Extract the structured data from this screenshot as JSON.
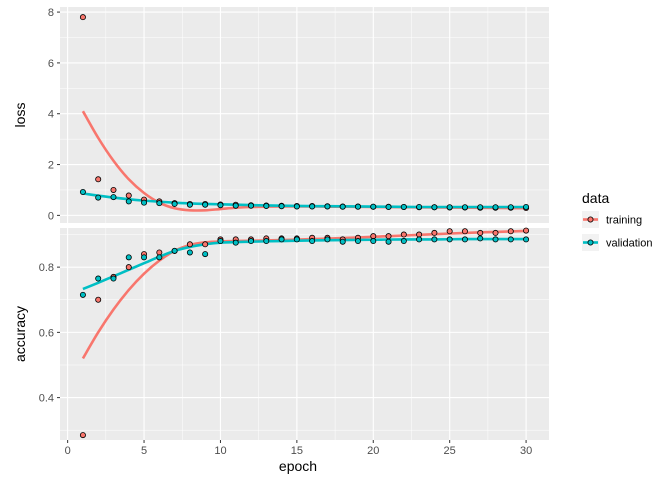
{
  "chart_data": {
    "type": "scatter",
    "xlabel": "epoch",
    "x_ticks": [
      0,
      5,
      10,
      15,
      20,
      25,
      30
    ],
    "legend": {
      "title": "data",
      "position": "right",
      "entries": [
        "training",
        "validation"
      ]
    },
    "colors": {
      "training": "#F8766D",
      "validation": "#00BFC4",
      "panel_bg": "#EBEBEB",
      "grid": "#FFFFFF"
    },
    "grid": true,
    "smooth_lines": true,
    "panels": [
      {
        "name": "loss",
        "ylabel": "loss",
        "ylim": [
          -0.3,
          8.2
        ],
        "y_ticks": [
          0,
          2,
          4,
          6,
          8
        ],
        "series": [
          {
            "name": "training",
            "x": [
              1,
              2,
              3,
              4,
              5,
              6,
              7,
              8,
              9,
              10,
              11,
              12,
              13,
              14,
              15,
              16,
              17,
              18,
              19,
              20,
              21,
              22,
              23,
              24,
              25,
              26,
              27,
              28,
              29,
              30
            ],
            "values": [
              7.8,
              1.42,
              1.0,
              0.78,
              0.62,
              0.55,
              0.48,
              0.45,
              0.45,
              0.43,
              0.42,
              0.4,
              0.39,
              0.38,
              0.37,
              0.37,
              0.36,
              0.35,
              0.35,
              0.34,
              0.34,
              0.33,
              0.32,
              0.32,
              0.31,
              0.31,
              0.3,
              0.3,
              0.3,
              0.29
            ],
            "smooth": [
              [
                1,
                4.1
              ],
              [
                2,
                3.05
              ],
              [
                3,
                2.15
              ],
              [
                4,
                1.42
              ],
              [
                5,
                0.88
              ],
              [
                6,
                0.5
              ],
              [
                7,
                0.28
              ],
              [
                8,
                0.2
              ],
              [
                9,
                0.2
              ],
              [
                10,
                0.25
              ],
              [
                11,
                0.3
              ],
              [
                12,
                0.33
              ],
              [
                14,
                0.35
              ],
              [
                16,
                0.35
              ],
              [
                18,
                0.34
              ],
              [
                20,
                0.33
              ],
              [
                22,
                0.32
              ],
              [
                24,
                0.31
              ],
              [
                26,
                0.3
              ],
              [
                28,
                0.29
              ],
              [
                30,
                0.28
              ]
            ]
          },
          {
            "name": "validation",
            "x": [
              1,
              2,
              3,
              4,
              5,
              6,
              7,
              8,
              9,
              10,
              11,
              12,
              13,
              14,
              15,
              16,
              17,
              18,
              19,
              20,
              21,
              22,
              23,
              24,
              25,
              26,
              27,
              28,
              29,
              30
            ],
            "values": [
              0.92,
              0.7,
              0.72,
              0.55,
              0.5,
              0.48,
              0.45,
              0.42,
              0.42,
              0.4,
              0.38,
              0.38,
              0.37,
              0.36,
              0.35,
              0.35,
              0.35,
              0.34,
              0.34,
              0.34,
              0.33,
              0.33,
              0.33,
              0.32,
              0.32,
              0.32,
              0.32,
              0.32,
              0.32,
              0.33
            ],
            "smooth": [
              [
                1,
                0.86
              ],
              [
                3,
                0.7
              ],
              [
                5,
                0.58
              ],
              [
                7,
                0.5
              ],
              [
                9,
                0.45
              ],
              [
                11,
                0.42
              ],
              [
                13,
                0.39
              ],
              [
                15,
                0.37
              ],
              [
                17,
                0.36
              ],
              [
                19,
                0.35
              ],
              [
                21,
                0.34
              ],
              [
                23,
                0.33
              ],
              [
                25,
                0.33
              ],
              [
                27,
                0.33
              ],
              [
                30,
                0.33
              ]
            ]
          }
        ]
      },
      {
        "name": "accuracy",
        "ylabel": "accuracy",
        "ylim": [
          0.27,
          0.92
        ],
        "y_ticks": [
          0.4,
          0.6,
          0.8
        ],
        "series": [
          {
            "name": "training",
            "x": [
              1,
              2,
              3,
              4,
              5,
              6,
              7,
              8,
              9,
              10,
              11,
              12,
              13,
              14,
              15,
              16,
              17,
              18,
              19,
              20,
              21,
              22,
              23,
              24,
              25,
              26,
              27,
              28,
              29,
              30
            ],
            "values": [
              0.285,
              0.7,
              0.77,
              0.8,
              0.84,
              0.845,
              0.85,
              0.87,
              0.87,
              0.885,
              0.885,
              0.885,
              0.888,
              0.888,
              0.888,
              0.89,
              0.89,
              0.885,
              0.89,
              0.895,
              0.895,
              0.9,
              0.9,
              0.905,
              0.91,
              0.91,
              0.905,
              0.905,
              0.91,
              0.912
            ],
            "smooth": [
              [
                1,
                0.52
              ],
              [
                2,
                0.6
              ],
              [
                3,
                0.67
              ],
              [
                4,
                0.73
              ],
              [
                5,
                0.78
              ],
              [
                6,
                0.82
              ],
              [
                7,
                0.85
              ],
              [
                8,
                0.868
              ],
              [
                9,
                0.876
              ],
              [
                10,
                0.879
              ],
              [
                12,
                0.881
              ],
              [
                14,
                0.883
              ],
              [
                16,
                0.886
              ],
              [
                18,
                0.889
              ],
              [
                20,
                0.893
              ],
              [
                22,
                0.897
              ],
              [
                24,
                0.901
              ],
              [
                26,
                0.905
              ],
              [
                28,
                0.908
              ],
              [
                30,
                0.911
              ]
            ]
          },
          {
            "name": "validation",
            "x": [
              1,
              2,
              3,
              4,
              5,
              6,
              7,
              8,
              9,
              10,
              11,
              12,
              13,
              14,
              15,
              16,
              17,
              18,
              19,
              20,
              21,
              22,
              23,
              24,
              25,
              26,
              27,
              28,
              29,
              30
            ],
            "values": [
              0.715,
              0.765,
              0.765,
              0.83,
              0.83,
              0.83,
              0.85,
              0.845,
              0.84,
              0.88,
              0.875,
              0.88,
              0.88,
              0.885,
              0.885,
              0.88,
              0.885,
              0.878,
              0.88,
              0.88,
              0.878,
              0.88,
              0.885,
              0.885,
              0.885,
              0.885,
              0.888,
              0.885,
              0.885,
              0.885
            ],
            "smooth": [
              [
                1,
                0.733
              ],
              [
                2,
                0.752
              ],
              [
                3,
                0.772
              ],
              [
                4,
                0.792
              ],
              [
                5,
                0.812
              ],
              [
                6,
                0.832
              ],
              [
                7,
                0.85
              ],
              [
                8,
                0.862
              ],
              [
                9,
                0.87
              ],
              [
                10,
                0.875
              ],
              [
                12,
                0.878
              ],
              [
                14,
                0.88
              ],
              [
                16,
                0.882
              ],
              [
                18,
                0.883
              ],
              [
                20,
                0.884
              ],
              [
                22,
                0.885
              ],
              [
                24,
                0.885
              ],
              [
                26,
                0.886
              ],
              [
                28,
                0.886
              ],
              [
                30,
                0.886
              ]
            ]
          }
        ]
      }
    ]
  }
}
